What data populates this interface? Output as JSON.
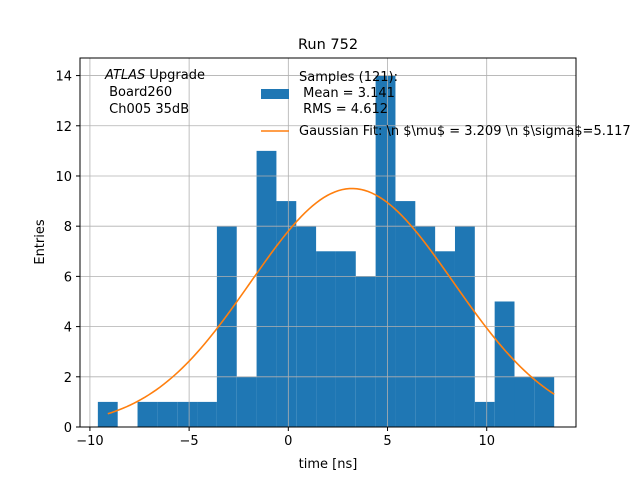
{
  "chart_data": {
    "type": "histogram",
    "title": "Run 752",
    "xlabel": "time [ns]",
    "ylabel": "Entries",
    "xlim": [
      -10.5,
      14.5
    ],
    "ylim": [
      0,
      14.7
    ],
    "xticks": [
      -10,
      -5,
      0,
      5,
      10
    ],
    "xtick_labels": [
      "−10",
      "−5",
      "0",
      "5",
      "10"
    ],
    "yticks": [
      0,
      2,
      4,
      6,
      8,
      10,
      12,
      14
    ],
    "ytick_labels": [
      "0",
      "2",
      "4",
      "6",
      "8",
      "10",
      "12",
      "14"
    ],
    "grid": true,
    "bin_edges": [
      -9.6,
      -8.6,
      -7.6,
      -6.6,
      -5.6,
      -4.6,
      -3.6,
      -2.6,
      -1.6,
      -0.6,
      0.4,
      1.4,
      2.4,
      3.4,
      4.4,
      5.4,
      6.4,
      7.4,
      8.4,
      9.4,
      10.4,
      11.4,
      12.4,
      13.4
    ],
    "counts": [
      1,
      0,
      1,
      1,
      1,
      1,
      8,
      2,
      11,
      9,
      8,
      7,
      7,
      6,
      14,
      9,
      8,
      7,
      8,
      1,
      5,
      2,
      2
    ],
    "bar_color": "#1f77b4",
    "fit": {
      "name": "Gaussian Fit: \\n $\\mu$ = 3.209 \\n $\\sigma$=5.117",
      "mu": 3.209,
      "sigma": 5.117,
      "amplitude": 9.5,
      "x_range": [
        -9.1,
        13.4
      ],
      "color": "#ff7f0e"
    },
    "legend": {
      "location": "top-right",
      "samples_lines": [
        "Samples (121):",
        " Mean = 3.141",
        " RMS = 4.612"
      ],
      "fit_label": "Gaussian Fit: \\n $\\mu$ = 3.209 \\n $\\sigma$=5.117"
    },
    "annotation": {
      "italic": "ATLAS",
      "rest": " Upgrade",
      "lines": [
        " Board260",
        " Ch005 35dB"
      ]
    }
  }
}
